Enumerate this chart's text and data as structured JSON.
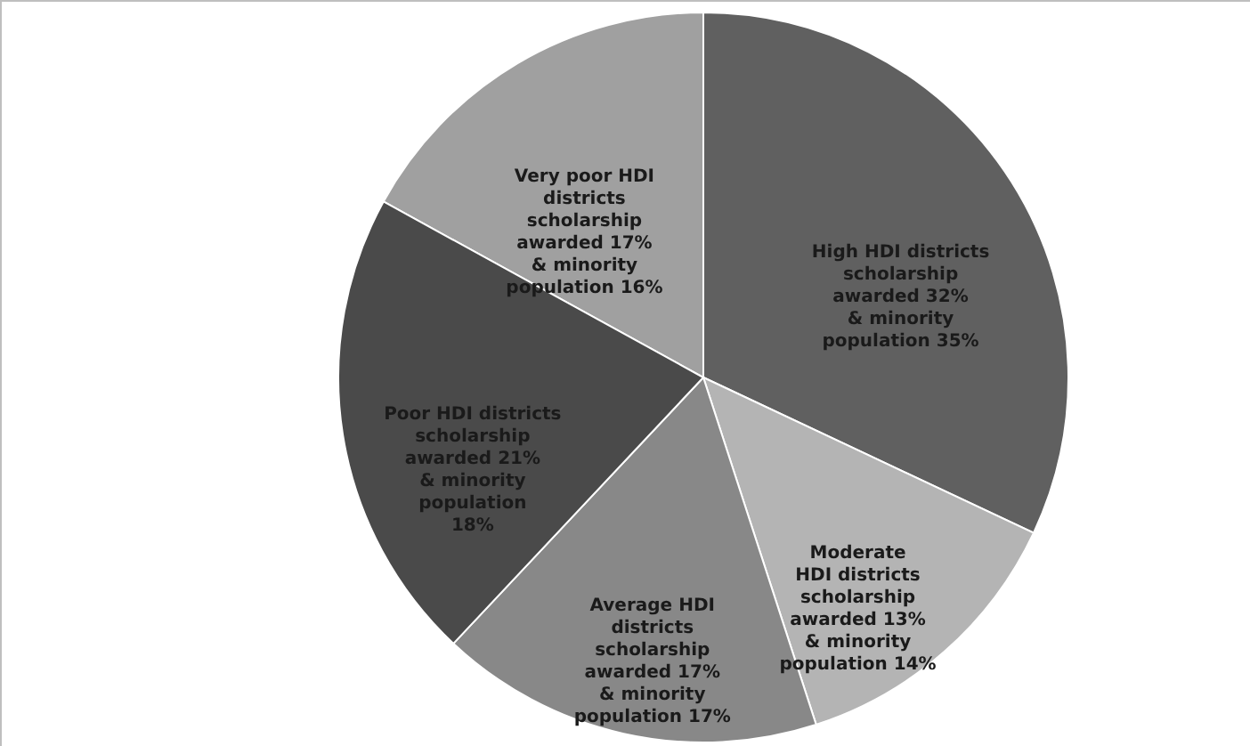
{
  "chart_data": {
    "type": "pie",
    "categories": [
      "Very poor HDI\ndistricts\nscholarship\nawarded 17%\n& minority\npopulation 16%",
      "High HDI districts\nscholarship\nawarded 32%\n& minority\npopulation 35%",
      "Moderate\nHDI districts\nscholarship\nawarded 13%\n& minority\npopulation 14%",
      "Average HDI\ndistricts\nscholarship\nawarded 17%\n& minority\npopulation 17%",
      "Poor HDI  districts\nscholarship\nawarded 21%\n& minority\npopulation\n18%"
    ],
    "values": [
      17,
      32,
      13,
      17,
      21
    ],
    "colors": [
      "#a0a0a0",
      "#606060",
      "#b4b4b4",
      "#888888",
      "#4a4a4a"
    ],
    "legend": false
  }
}
